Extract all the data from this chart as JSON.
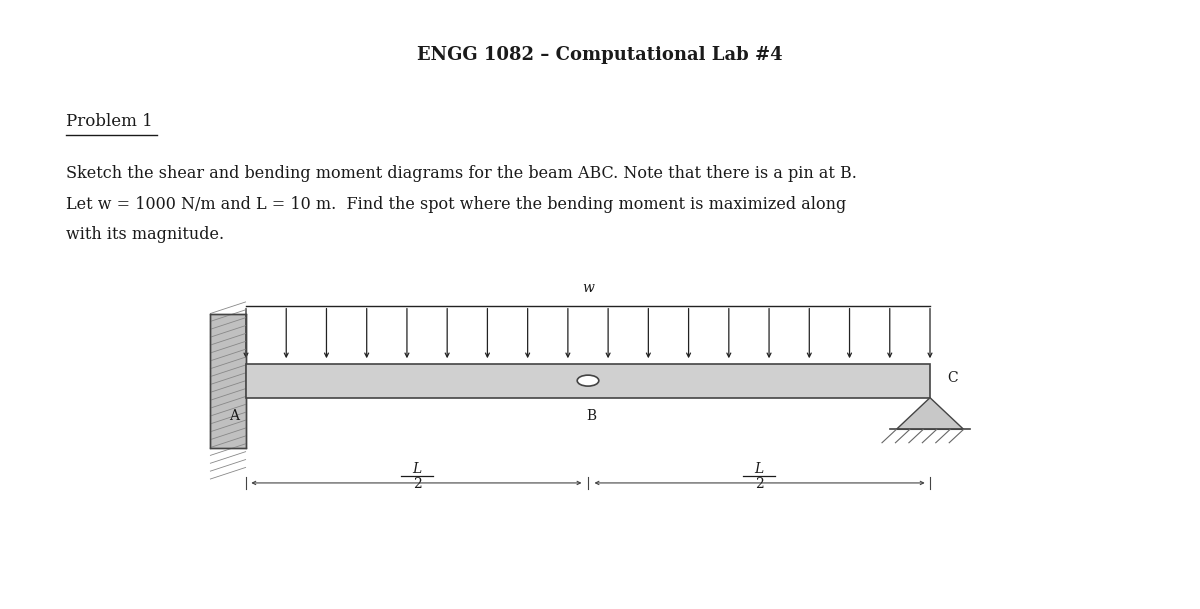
{
  "title": "ENGG 1082 – Computational Lab #4",
  "problem_label": "Problem 1",
  "body_text_line1": "Sketch the shear and bending moment diagrams for the beam ABC. Note that there is a pin at B.",
  "body_text_line2": "Let w = 1000 N/m and L = 10 m.  Find the spot where the bending moment is maximized along",
  "body_text_line3": "with its magnitude.",
  "label_w": "w",
  "label_A": "A",
  "label_B": "B",
  "label_C": "C",
  "label_L_left": "L",
  "label_L_right": "L",
  "label_2_left": "2",
  "label_2_right": "2",
  "bg_color": "#ffffff",
  "text_color": "#1a1a1a",
  "arrow_color": "#222222",
  "fig_width": 12.0,
  "fig_height": 6.09,
  "n_arrows": 18
}
